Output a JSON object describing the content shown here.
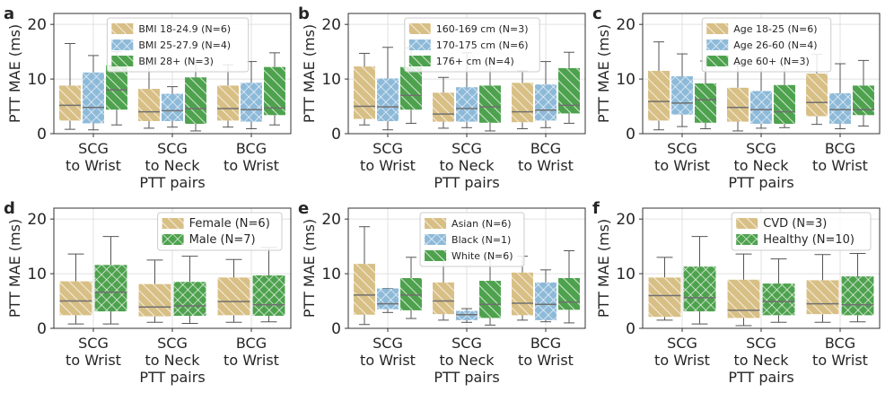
{
  "style": {
    "colors": [
      "#d8bf85",
      "#8ebad9",
      "#4ea24e"
    ],
    "grid_color": "#e0e0e0",
    "frame_color": "#333333",
    "median_color": "#707070"
  },
  "chart_data": [
    {
      "type": "box",
      "panel_label": "a",
      "ylabel": "PTT MAE (ms)",
      "xlabel": "PTT pairs",
      "ylim": [
        0,
        22
      ],
      "yticks": [
        0,
        10,
        20
      ],
      "categories": [
        [
          "SCG",
          "to Wrist"
        ],
        [
          "SCG",
          "to Neck"
        ],
        [
          "BCG",
          "to Wrist"
        ]
      ],
      "series": [
        {
          "name": "BMI 18-24.9 (N=6)",
          "hatch": "diag",
          "boxes": [
            [
              0.8,
              2.4,
              5.2,
              8.8,
              16.5
            ],
            [
              1.0,
              2.3,
              4.0,
              8.2,
              12.6
            ],
            [
              1.2,
              2.4,
              4.6,
              8.8,
              12.6
            ]
          ]
        },
        {
          "name": "BMI 25-27.9 (N=4)",
          "hatch": "cross",
          "boxes": [
            [
              0.7,
              1.9,
              4.8,
              11.2,
              14.3
            ],
            [
              1.2,
              2.3,
              4.2,
              7.3,
              8.6
            ],
            [
              0.9,
              2.2,
              4.4,
              9.3,
              13.2
            ]
          ]
        },
        {
          "name": "BMI 28+ (N=3)",
          "hatch": "diag",
          "boxes": [
            [
              1.6,
              4.4,
              8.0,
              12.6,
              15.0
            ],
            [
              0.5,
              1.8,
              4.6,
              10.3,
              13.1
            ],
            [
              1.6,
              3.4,
              4.7,
              12.2,
              14.8
            ]
          ]
        }
      ],
      "legend": "top-center"
    },
    {
      "type": "box",
      "panel_label": "b",
      "ylabel": "PTT MAE (ms)",
      "xlabel": "PTT pairs",
      "ylim": [
        0,
        22
      ],
      "yticks": [
        0,
        10,
        20
      ],
      "categories": [
        [
          "SCG",
          "to Wrist"
        ],
        [
          "SCG",
          "to Neck"
        ],
        [
          "BCG",
          "to Wrist"
        ]
      ],
      "series": [
        {
          "name": "160-169 cm (N=3)",
          "hatch": "diag",
          "boxes": [
            [
              1.6,
              2.7,
              5.0,
              12.3,
              14.7
            ],
            [
              1.0,
              2.2,
              3.6,
              7.5,
              10.3
            ],
            [
              0.9,
              2.1,
              4.0,
              9.3,
              11.5
            ]
          ]
        },
        {
          "name": "170-175 cm (N=6)",
          "hatch": "cross",
          "boxes": [
            [
              0.7,
              2.3,
              4.9,
              10.1,
              15.8
            ],
            [
              1.1,
              2.2,
              4.6,
              8.5,
              14.8
            ],
            [
              1.1,
              2.4,
              4.3,
              9.0,
              13.2
            ]
          ]
        },
        {
          "name": "176+ cm (N=4)",
          "hatch": "diag",
          "boxes": [
            [
              1.9,
              4.4,
              7.0,
              12.2,
              15.7
            ],
            [
              0.5,
              2.0,
              4.9,
              8.8,
              13.2
            ],
            [
              1.9,
              3.7,
              5.2,
              12.0,
              14.9
            ]
          ]
        }
      ],
      "legend": "top-center"
    },
    {
      "type": "box",
      "panel_label": "c",
      "ylabel": "PTT MAE (ms)",
      "xlabel": "PTT pairs",
      "ylim": [
        0,
        22
      ],
      "yticks": [
        0,
        10,
        20
      ],
      "categories": [
        [
          "SCG",
          "to Wrist"
        ],
        [
          "SCG",
          "to Neck"
        ],
        [
          "BCG",
          "to Wrist"
        ]
      ],
      "series": [
        {
          "name": "Age 18-25 (N=6)",
          "hatch": "diag",
          "boxes": [
            [
              0.7,
              2.4,
              5.9,
              11.5,
              16.8
            ],
            [
              0.5,
              2.2,
              4.8,
              8.4,
              12.8
            ],
            [
              1.7,
              3.2,
              5.7,
              11.0,
              14.5
            ]
          ]
        },
        {
          "name": "Age 26-60 (N=4)",
          "hatch": "cross",
          "boxes": [
            [
              1.3,
              3.5,
              5.6,
              10.5,
              14.6
            ],
            [
              1.0,
              1.8,
              4.4,
              7.8,
              12.8
            ],
            [
              0.9,
              1.8,
              4.4,
              7.4,
              12.8
            ]
          ]
        },
        {
          "name": "Age 60+ (N=3)",
          "hatch": "diag",
          "boxes": [
            [
              0.9,
              2.0,
              6.2,
              9.2,
              13.3
            ],
            [
              1.1,
              1.8,
              4.0,
              8.9,
              12.9
            ],
            [
              1.4,
              3.4,
              4.4,
              8.8,
              13.4
            ]
          ]
        }
      ],
      "legend": "top-center"
    },
    {
      "type": "box",
      "panel_label": "d",
      "ylabel": "PTT MAE (ms)",
      "xlabel": "PTT pairs",
      "ylim": [
        0,
        22
      ],
      "yticks": [
        0,
        10,
        20
      ],
      "categories": [
        [
          "SCG",
          "to Wrist"
        ],
        [
          "SCG",
          "to Neck"
        ],
        [
          "BCG",
          "to Wrist"
        ]
      ],
      "series": [
        {
          "name": "Female (N=6)",
          "hatch": "diag",
          "boxes": [
            [
              0.8,
              2.4,
              5.0,
              8.6,
              13.6
            ],
            [
              1.1,
              2.2,
              3.9,
              8.1,
              12.5
            ],
            [
              1.1,
              2.4,
              4.9,
              9.3,
              12.6
            ]
          ]
        },
        {
          "name": "Male (N=7)",
          "hatch": "crossbox",
          "boxes": [
            [
              0.8,
              3.1,
              6.6,
              11.6,
              16.8
            ],
            [
              0.9,
              2.3,
              4.1,
              8.5,
              13.2
            ],
            [
              1.2,
              2.3,
              4.3,
              9.7,
              14.8
            ]
          ]
        }
      ],
      "legend": "top-right"
    },
    {
      "type": "box",
      "panel_label": "e",
      "ylabel": "PTT MAE (ms)",
      "xlabel": "PTT pairs",
      "ylim": [
        0,
        22
      ],
      "yticks": [
        0,
        10,
        20
      ],
      "categories": [
        [
          "SCG",
          "to Wrist"
        ],
        [
          "SCG",
          "to Neck"
        ],
        [
          "BCG",
          "to Wrist"
        ]
      ],
      "series": [
        {
          "name": "Asian (N=6)",
          "hatch": "diag",
          "boxes": [
            [
              0.7,
              2.5,
              6.1,
              11.8,
              18.6
            ],
            [
              1.5,
              2.6,
              5.0,
              8.4,
              12.6
            ],
            [
              1.5,
              2.4,
              4.6,
              10.2,
              13.2
            ]
          ]
        },
        {
          "name": "Black (N=1)",
          "hatch": "cross",
          "boxes": [
            [
              2.9,
              3.5,
              4.5,
              7.3,
              7.3
            ],
            [
              1.1,
              1.5,
              2.5,
              3.2,
              3.6
            ],
            [
              1.2,
              1.5,
              4.4,
              8.4,
              10.7
            ]
          ]
        },
        {
          "name": "White (N=6)",
          "hatch": "diag",
          "boxes": [
            [
              1.8,
              3.3,
              6.1,
              9.2,
              13.0
            ],
            [
              0.6,
              1.9,
              4.4,
              8.7,
              13.0
            ],
            [
              1.0,
              3.4,
              4.8,
              9.2,
              14.2
            ]
          ]
        }
      ],
      "legend": "top-center"
    },
    {
      "type": "box",
      "panel_label": "f",
      "ylabel": "PTT MAE (ms)",
      "xlabel": "PTT pairs",
      "ylim": [
        0,
        22
      ],
      "yticks": [
        0,
        10,
        20
      ],
      "categories": [
        [
          "SCG",
          "to Wrist"
        ],
        [
          "SCG",
          "to Neck"
        ],
        [
          "BCG",
          "to Wrist"
        ]
      ],
      "series": [
        {
          "name": "CVD (N=3)",
          "hatch": "diag",
          "boxes": [
            [
              1.5,
              2.1,
              6.0,
              9.3,
              13.0
            ],
            [
              0.5,
              1.9,
              3.3,
              8.9,
              13.6
            ],
            [
              1.1,
              2.6,
              4.5,
              8.8,
              13.5
            ]
          ]
        },
        {
          "name": "Healthy (N=10)",
          "hatch": "crossbox",
          "boxes": [
            [
              0.8,
              3.1,
              5.6,
              11.3,
              16.8
            ],
            [
              1.1,
              2.4,
              4.9,
              8.2,
              12.7
            ],
            [
              1.2,
              2.4,
              4.3,
              9.5,
              13.7
            ]
          ]
        }
      ],
      "legend": "top-right"
    }
  ]
}
